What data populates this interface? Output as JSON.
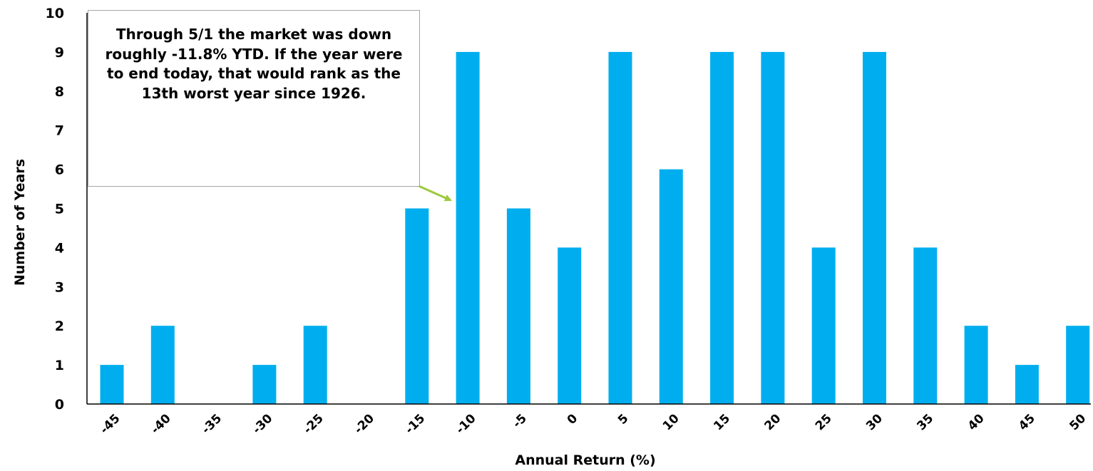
{
  "chart_data": {
    "type": "bar",
    "categories": [
      "-45",
      "-40",
      "-35",
      "-30",
      "-25",
      "-20",
      "-15",
      "-10",
      "-5",
      "0",
      "5",
      "10",
      "15",
      "20",
      "25",
      "30",
      "35",
      "40",
      "45",
      "50"
    ],
    "values": [
      1,
      2,
      0,
      1,
      2,
      0,
      5,
      9,
      5,
      4,
      9,
      6,
      9,
      9,
      4,
      9,
      4,
      2,
      1,
      2
    ],
    "xlabel": "Annual Return (%)",
    "ylabel": "Number of Years",
    "ylim": [
      0,
      10
    ],
    "yticks": [
      "0",
      "1",
      "2",
      "3",
      "4",
      "5",
      "6",
      "7",
      "8",
      "9",
      "10"
    ],
    "grid": false,
    "bar_color": "#00aeef",
    "annotation": {
      "text": "Through 5/1 the market was down roughly -11.8% YTD.  If the year were to end today, that would rank as the 13th worst year since 1926.",
      "arrow_color": "#9dc93b",
      "points_to_category": "-10"
    }
  }
}
